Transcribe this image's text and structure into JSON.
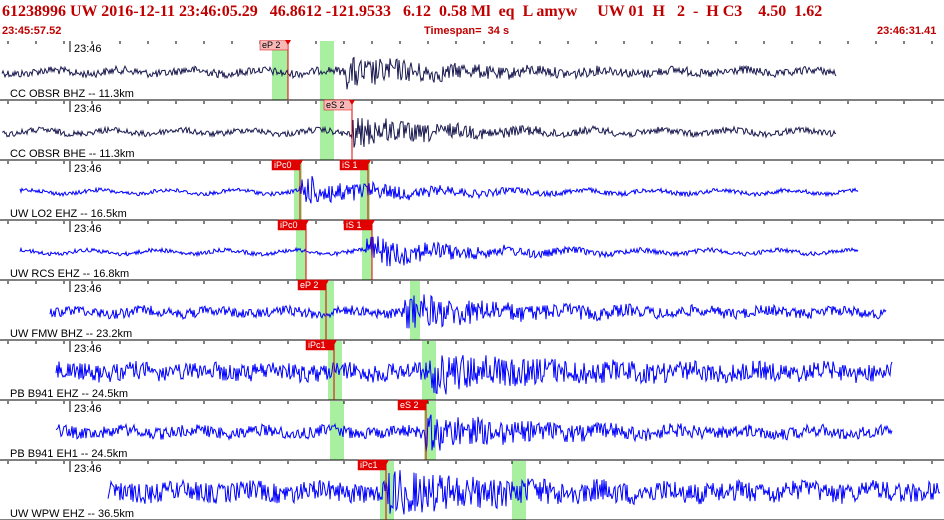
{
  "header": {
    "event_line": "61238996 UW 2016-12-11 23:46:05.29   46.8612 -121.9533   6.12  0.58 Ml  eq  L amyw     UW 01  H   2  -  H C3    4.50  1.62",
    "start_time": "23:45:57.52",
    "timespan": "Timespan=  34 s",
    "end_time": "23:46:31.41"
  },
  "colors": {
    "header_text": "#c00000",
    "trace_dark": "#1a1a50",
    "trace_blue": "#0000ff",
    "pick_red": "#e00000",
    "pick_pink": "#f7b8b8",
    "window_green": "#a8f0a0",
    "divider": "#000000"
  },
  "time_label": "23:46",
  "traces": [
    {
      "station": "CC OBSR BHZ -- 11.3km",
      "color": "dark",
      "picks": [
        {
          "label": "eP 2",
          "style": "pink"
        }
      ],
      "windows": 2
    },
    {
      "station": "CC OBSR BHE -- 11.3km",
      "color": "dark",
      "picks": [
        {
          "label": "eS 2",
          "style": "pink"
        }
      ],
      "windows": 1
    },
    {
      "station": "UW LO2 EHZ -- 16.5km",
      "color": "blue",
      "picks": [
        {
          "label": "iPc0",
          "style": "red"
        },
        {
          "label": "iS 1",
          "style": "red"
        }
      ],
      "windows": 2
    },
    {
      "station": "UW RCS EHZ -- 16.8km",
      "color": "blue",
      "picks": [
        {
          "label": "iPc0",
          "style": "red"
        },
        {
          "label": "iS 1",
          "style": "red"
        }
      ],
      "windows": 2
    },
    {
      "station": "UW FMW BHZ -- 23.2km",
      "color": "blue",
      "picks": [
        {
          "label": "eP 2",
          "style": "red"
        }
      ],
      "windows": 2
    },
    {
      "station": "PB B941 EHZ -- 24.5km",
      "color": "blue",
      "picks": [
        {
          "label": "iPc1",
          "style": "red"
        }
      ],
      "windows": 2
    },
    {
      "station": "PB B941 EH1 -- 24.5km",
      "color": "blue",
      "picks": [
        {
          "label": "eS 2",
          "style": "red"
        }
      ],
      "windows": 2
    },
    {
      "station": "UW WPW EHZ -- 36.5km",
      "color": "blue",
      "picks": [
        {
          "label": "iPc1",
          "style": "red"
        }
      ],
      "windows": 2
    }
  ]
}
